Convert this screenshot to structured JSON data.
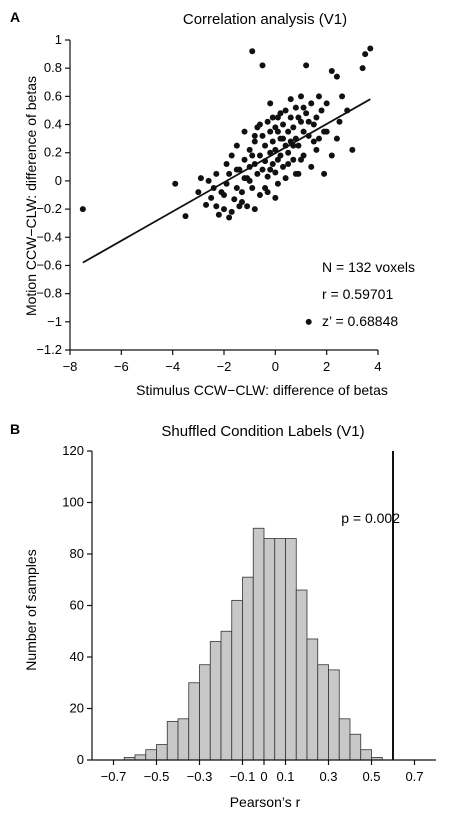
{
  "chart_data": [
    {
      "panel": "A",
      "type": "scatter",
      "title": "Correlation analysis (V1)",
      "xlabel": "Stimulus CCW−CLW: difference of betas",
      "ylabel": "Motion CCW−CLW: difference of betas",
      "xlim": [
        -8,
        4
      ],
      "ylim": [
        -1.2,
        1
      ],
      "xticks": [
        -8,
        -6,
        -4,
        -2,
        0,
        2,
        4
      ],
      "yticks": [
        1,
        0.8,
        0.6,
        0.4,
        0.2,
        0,
        -0.2,
        -0.4,
        -0.6,
        -0.8,
        -1,
        -1.2
      ],
      "xtick_labels": [
        "−8",
        "−6",
        "−4",
        "−2",
        "0",
        "2",
        "4"
      ],
      "ytick_labels": [
        "1",
        "0.8",
        "0.6",
        "0.4",
        "0.2",
        "0",
        "−0.2",
        "−0.4",
        "−0.6",
        "−0.8",
        "−1",
        "−1.2"
      ],
      "grid": false,
      "marker_color": "#111111",
      "fit_line": {
        "x": [
          -7.5,
          3.7
        ],
        "y": [
          -0.58,
          0.58
        ]
      },
      "annotations": [
        "N = 132 voxels",
        "r = 0.59701",
        "z’ = 0.68848"
      ],
      "points": [
        [
          -7.5,
          -0.2
        ],
        [
          -3.9,
          -0.02
        ],
        [
          -3.5,
          -0.25
        ],
        [
          -3.0,
          -0.08
        ],
        [
          -2.9,
          0.02
        ],
        [
          -2.7,
          -0.17
        ],
        [
          -2.5,
          -0.12
        ],
        [
          -2.4,
          -0.05
        ],
        [
          -2.3,
          -0.18
        ],
        [
          -2.2,
          -0.24
        ],
        [
          -2.1,
          -0.08
        ],
        [
          -2.0,
          -0.1
        ],
        [
          -1.9,
          0.12
        ],
        [
          -1.8,
          -0.26
        ],
        [
          -1.8,
          0.05
        ],
        [
          -1.7,
          0.18
        ],
        [
          -1.6,
          -0.13
        ],
        [
          -1.5,
          -0.05
        ],
        [
          -1.5,
          0.25
        ],
        [
          -1.4,
          0.08
        ],
        [
          -1.3,
          -0.08
        ],
        [
          -1.3,
          -0.15
        ],
        [
          -1.2,
          0.15
        ],
        [
          -1.2,
          0.35
        ],
        [
          -1.1,
          0.02
        ],
        [
          -1.1,
          -0.18
        ],
        [
          -1.0,
          0.22
        ],
        [
          -1.0,
          0.1
        ],
        [
          -0.9,
          0.92
        ],
        [
          -0.9,
          -0.05
        ],
        [
          -0.8,
          0.28
        ],
        [
          -0.8,
          0.12
        ],
        [
          -0.8,
          -0.2
        ],
        [
          -0.7,
          0.05
        ],
        [
          -0.7,
          0.38
        ],
        [
          -0.6,
          0.18
        ],
        [
          -0.6,
          -0.1
        ],
        [
          -0.5,
          0.08
        ],
        [
          -0.5,
          0.32
        ],
        [
          -0.4,
          0.14
        ],
        [
          -0.4,
          0.25
        ],
        [
          -0.3,
          0.42
        ],
        [
          -0.3,
          0.03
        ],
        [
          -0.3,
          -0.08
        ],
        [
          -0.2,
          0.2
        ],
        [
          -0.2,
          0.35
        ],
        [
          -0.2,
          0.55
        ],
        [
          -0.1,
          0.12
        ],
        [
          -0.1,
          0.28
        ],
        [
          0.0,
          0.38
        ],
        [
          0.0,
          0.06
        ],
        [
          0.0,
          0.22
        ],
        [
          0.1,
          0.15
        ],
        [
          0.1,
          0.45
        ],
        [
          0.1,
          -0.02
        ],
        [
          0.2,
          0.3
        ],
        [
          0.2,
          0.18
        ],
        [
          0.3,
          0.4
        ],
        [
          0.3,
          0.1
        ],
        [
          0.4,
          0.25
        ],
        [
          0.4,
          0.5
        ],
        [
          0.5,
          0.35
        ],
        [
          0.5,
          0.2
        ],
        [
          0.6,
          0.45
        ],
        [
          0.6,
          0.28
        ],
        [
          0.7,
          0.15
        ],
        [
          0.7,
          0.38
        ],
        [
          0.8,
          0.52
        ],
        [
          0.8,
          0.3
        ],
        [
          0.9,
          0.25
        ],
        [
          1.0,
          0.42
        ],
        [
          1.0,
          0.6
        ],
        [
          1.1,
          0.35
        ],
        [
          1.1,
          0.18
        ],
        [
          1.2,
          0.48
        ],
        [
          1.3,
          -1.0
        ],
        [
          1.3,
          0.32
        ],
        [
          1.4,
          0.55
        ],
        [
          1.4,
          0.1
        ],
        [
          1.5,
          0.4
        ],
        [
          1.6,
          0.22
        ],
        [
          1.7,
          0.3
        ],
        [
          1.8,
          0.5
        ],
        [
          1.9,
          0.05
        ],
        [
          2.0,
          0.35
        ],
        [
          2.2,
          0.78
        ],
        [
          2.4,
          0.74
        ],
        [
          2.6,
          0.6
        ],
        [
          2.8,
          0.5
        ],
        [
          3.0,
          0.22
        ],
        [
          3.4,
          0.8
        ],
        [
          3.5,
          0.9
        ],
        [
          3.7,
          0.94
        ],
        [
          -0.5,
          0.82
        ],
        [
          1.2,
          0.82
        ],
        [
          -1.5,
          0.08
        ],
        [
          -1.0,
          0.0
        ],
        [
          -0.6,
          0.4
        ],
        [
          0.2,
          0.48
        ],
        [
          0.6,
          0.58
        ],
        [
          1.0,
          0.15
        ],
        [
          -2.6,
          0.0
        ],
        [
          -0.4,
          -0.05
        ],
        [
          0.3,
          0.3
        ],
        [
          0.9,
          0.45
        ],
        [
          1.5,
          0.28
        ],
        [
          2.0,
          0.55
        ],
        [
          2.5,
          0.42
        ],
        [
          -1.9,
          -0.02
        ],
        [
          -0.2,
          0.08
        ],
        [
          0.5,
          0.12
        ],
        [
          1.7,
          0.6
        ],
        [
          1.3,
          0.42
        ],
        [
          0.1,
          0.35
        ],
        [
          -0.9,
          0.18
        ],
        [
          -2.3,
          0.05
        ],
        [
          -1.4,
          -0.18
        ],
        [
          0.8,
          0.05
        ],
        [
          2.2,
          0.18
        ],
        [
          -0.1,
          0.45
        ],
        [
          1.1,
          0.52
        ],
        [
          0.4,
          0.02
        ],
        [
          -1.7,
          -0.22
        ],
        [
          0.7,
          0.25
        ],
        [
          1.9,
          0.35
        ],
        [
          -0.8,
          0.32
        ],
        [
          -2.0,
          -0.2
        ],
        [
          0.0,
          -0.12
        ],
        [
          1.6,
          0.45
        ],
        [
          -1.2,
          0.02
        ],
        [
          2.4,
          0.3
        ],
        [
          0.9,
          0.05
        ]
      ]
    },
    {
      "panel": "B",
      "type": "bar",
      "title": "Shuffled Condition Labels (V1)",
      "xlabel": "Pearson’s r",
      "ylabel": "Number of samples",
      "xlim": [
        -0.8,
        0.8
      ],
      "ylim": [
        0,
        120
      ],
      "xticks": [
        -0.7,
        -0.5,
        -0.3,
        -0.1,
        0.0,
        0.1,
        0.3,
        0.5,
        0.7
      ],
      "yticks": [
        0,
        20,
        40,
        60,
        80,
        100,
        120
      ],
      "xtick_labels": [
        "−0.7",
        "−0.5",
        "−0.3",
        "−0.1",
        "0",
        "0.1",
        "0.3",
        "0.5",
        "0.7"
      ],
      "ytick_labels": [
        "0",
        "20",
        "40",
        "60",
        "80",
        "100",
        "120"
      ],
      "grid": false,
      "bar_color": "#c8c8c8",
      "bin_width": 0.05,
      "bin_starts": [
        -0.7,
        -0.65,
        -0.6,
        -0.55,
        -0.5,
        -0.45,
        -0.4,
        -0.35,
        -0.3,
        -0.25,
        -0.2,
        -0.15,
        -0.1,
        -0.05,
        0.0,
        0.05,
        0.1,
        0.15,
        0.2,
        0.25,
        0.3,
        0.35,
        0.4,
        0.45,
        0.5,
        0.55,
        0.6,
        0.65
      ],
      "values": [
        0,
        1,
        2,
        4,
        6,
        15,
        16,
        30,
        37,
        46,
        50,
        62,
        71,
        90,
        86,
        86,
        86,
        66,
        47,
        37,
        35,
        16,
        10,
        4,
        1,
        0,
        0,
        0
      ],
      "vline_x": 0.6,
      "annotation": "p = 0.002"
    }
  ]
}
